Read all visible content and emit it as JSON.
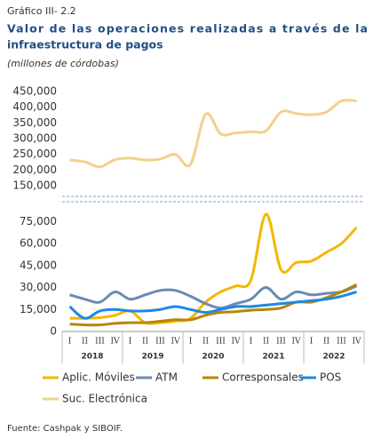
{
  "header": {
    "label": "Gráfico III- 2.2",
    "title": "Valor de las operaciones realizadas a través de la",
    "title2": "infraestructura de pagos",
    "subtitle": "(millones de córdobas)"
  },
  "source": "Fuente: Cashpak y SIBOIF.",
  "chart_data": [
    {
      "type": "line",
      "ylim": [
        150000,
        450000
      ],
      "yticks": [
        {
          "value": 150000,
          "label": "150,000"
        },
        {
          "value": 200000,
          "label": "200,000"
        },
        {
          "value": 250000,
          "label": "250,000"
        },
        {
          "value": 300000,
          "label": "300,000"
        },
        {
          "value": 350000,
          "label": "350,000"
        },
        {
          "value": 400000,
          "label": "400,000"
        },
        {
          "value": 450000,
          "label": "450,000"
        }
      ],
      "series": [
        {
          "name": "Suc. Electrónica",
          "color": "#f3d08d",
          "values": [
            232000,
            226000,
            210000,
            233000,
            238000,
            232000,
            235000,
            250000,
            218000,
            378000,
            315000,
            318000,
            322000,
            325000,
            385000,
            380000,
            376000,
            385000,
            420000,
            420000
          ]
        }
      ]
    },
    {
      "type": "line",
      "ylim": [
        0,
        80000
      ],
      "categories": [
        "I",
        "II",
        "III",
        "IV",
        "I",
        "II",
        "III",
        "IV",
        "I",
        "II",
        "III",
        "IV",
        "I",
        "II",
        "III",
        "IV",
        "I",
        "II",
        "III",
        "IV"
      ],
      "years": [
        "2018",
        "2019",
        "2020",
        "2021",
        "2022"
      ],
      "yticks": [
        0,
        {
          "value": 15000,
          "label": "15,000"
        },
        {
          "value": 30000,
          "label": "30,000"
        },
        {
          "value": 45000,
          "label": "45,000"
        },
        {
          "value": 60000,
          "label": "60,000"
        },
        {
          "value": 75000,
          "label": "75,000"
        }
      ],
      "series": [
        {
          "name": "Aplic. Móviles",
          "color": "#f2b800",
          "values": [
            9000,
            9000,
            9500,
            11000,
            14000,
            6000,
            6000,
            7000,
            9000,
            20000,
            27000,
            31000,
            35000,
            80000,
            42000,
            47000,
            48000,
            54000,
            60000,
            71000
          ]
        },
        {
          "name": "ATM",
          "color": "#6a8bb3",
          "values": [
            25000,
            22000,
            20000,
            27000,
            22000,
            25000,
            28000,
            28000,
            24000,
            19000,
            16000,
            19000,
            22000,
            30000,
            22000,
            27000,
            25000,
            26000,
            27000,
            31000
          ]
        },
        {
          "name": "Corresponsales",
          "color": "#b8860b",
          "values": [
            5000,
            4500,
            4500,
            5500,
            6000,
            6000,
            7000,
            8000,
            8000,
            11000,
            13000,
            13500,
            14500,
            15000,
            16000,
            20000,
            20000,
            23000,
            27000,
            32000
          ]
        },
        {
          "name": "POS",
          "color": "#1e88e5",
          "values": [
            17000,
            9000,
            14000,
            15000,
            14000,
            14000,
            15000,
            17000,
            15000,
            13000,
            15000,
            17000,
            17000,
            18000,
            19000,
            20000,
            21000,
            22000,
            24000,
            27000
          ]
        }
      ]
    }
  ]
}
